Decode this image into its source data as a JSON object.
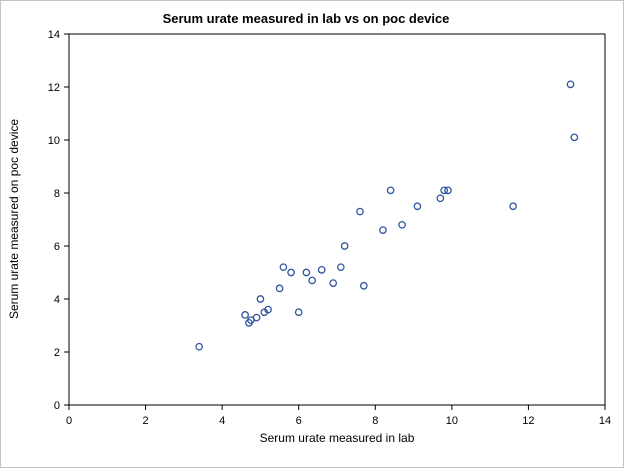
{
  "chart_data": {
    "type": "scatter",
    "title": "Serum urate measured in lab vs on poc device",
    "xlabel": "Serum urate measured in lab",
    "ylabel": "Serum urate measured on poc device",
    "xlim": [
      0,
      14
    ],
    "ylim": [
      0,
      14
    ],
    "xticks": [
      0,
      2,
      4,
      6,
      8,
      10,
      12,
      14
    ],
    "yticks": [
      0,
      2,
      4,
      6,
      8,
      10,
      12,
      14
    ],
    "grid": false,
    "legend": "none",
    "marker": "open-circle",
    "marker_color": "#31559f",
    "points": [
      [
        3.4,
        2.2
      ],
      [
        4.6,
        3.4
      ],
      [
        4.7,
        3.1
      ],
      [
        4.75,
        3.2
      ],
      [
        4.9,
        3.3
      ],
      [
        5.0,
        4.0
      ],
      [
        5.1,
        3.5
      ],
      [
        5.2,
        3.6
      ],
      [
        5.5,
        4.4
      ],
      [
        5.6,
        5.2
      ],
      [
        5.8,
        5.0
      ],
      [
        6.0,
        3.5
      ],
      [
        6.2,
        5.0
      ],
      [
        6.35,
        4.7
      ],
      [
        6.6,
        5.1
      ],
      [
        6.9,
        4.6
      ],
      [
        7.1,
        5.2
      ],
      [
        7.2,
        6.0
      ],
      [
        7.6,
        7.3
      ],
      [
        7.7,
        4.5
      ],
      [
        8.2,
        6.6
      ],
      [
        8.4,
        8.1
      ],
      [
        8.7,
        6.8
      ],
      [
        9.1,
        7.5
      ],
      [
        9.7,
        7.8
      ],
      [
        9.8,
        8.1
      ],
      [
        9.9,
        8.1
      ],
      [
        11.6,
        7.5
      ],
      [
        13.1,
        12.1
      ],
      [
        13.2,
        10.1
      ]
    ]
  }
}
